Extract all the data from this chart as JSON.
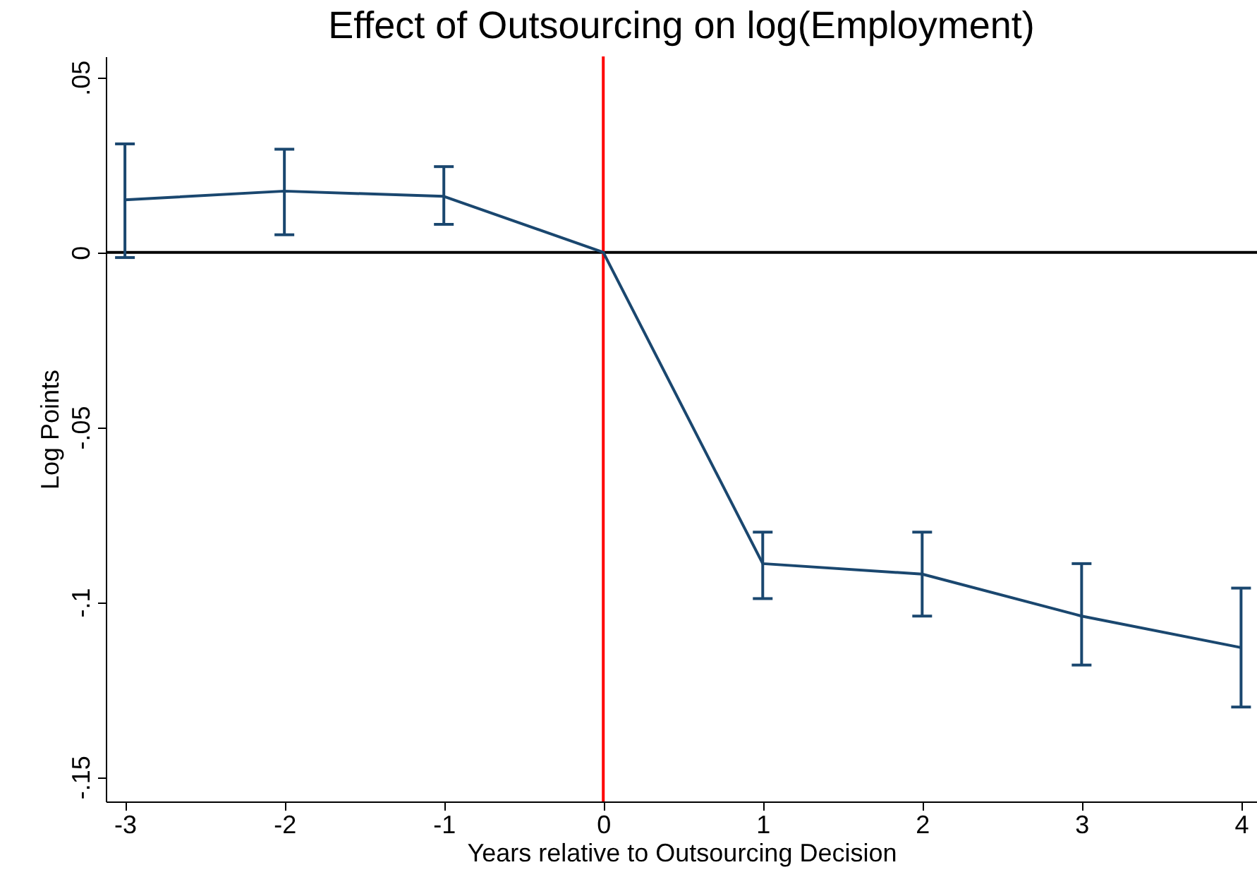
{
  "chart_data": {
    "type": "line",
    "title": "Effect of Outsourcing on log(Employment)",
    "xlabel": "Years relative to Outsourcing Decision",
    "ylabel": "Log Points",
    "x": [
      -3,
      -2,
      -1,
      0,
      1,
      2,
      3,
      4
    ],
    "series": [
      {
        "color": "#1a476f",
        "values": [
          0.015,
          0.0175,
          0.016,
          0,
          -0.089,
          -0.092,
          -0.104,
          -0.113
        ],
        "errors": [
          [
            -0.0015,
            0.031
          ],
          [
            0.005,
            0.0295
          ],
          [
            0.008,
            0.0245
          ],
          null,
          [
            -0.099,
            -0.08
          ],
          [
            -0.104,
            -0.08
          ],
          [
            -0.118,
            -0.089
          ],
          [
            -0.13,
            -0.096
          ]
        ]
      }
    ],
    "xlim": [
      -3.12,
      4.1
    ],
    "ylim": [
      -0.157,
      0.056
    ],
    "xticks": [
      -3,
      -2,
      -1,
      0,
      1,
      2,
      3,
      4
    ],
    "yticks": [
      {
        "value": 0.05,
        "label": ".05"
      },
      0,
      {
        "value": -0.05,
        "label": "-.05"
      },
      {
        "value": -0.1,
        "label": "-.1"
      },
      {
        "value": -0.15,
        "label": "-.15"
      }
    ],
    "ref_lines": [
      {
        "axis": "y",
        "value": 0,
        "color": "#000000"
      },
      {
        "axis": "x",
        "value": 0,
        "color": "#ff0000"
      }
    ],
    "grid": false,
    "marker": "none",
    "line_style": "solid"
  }
}
